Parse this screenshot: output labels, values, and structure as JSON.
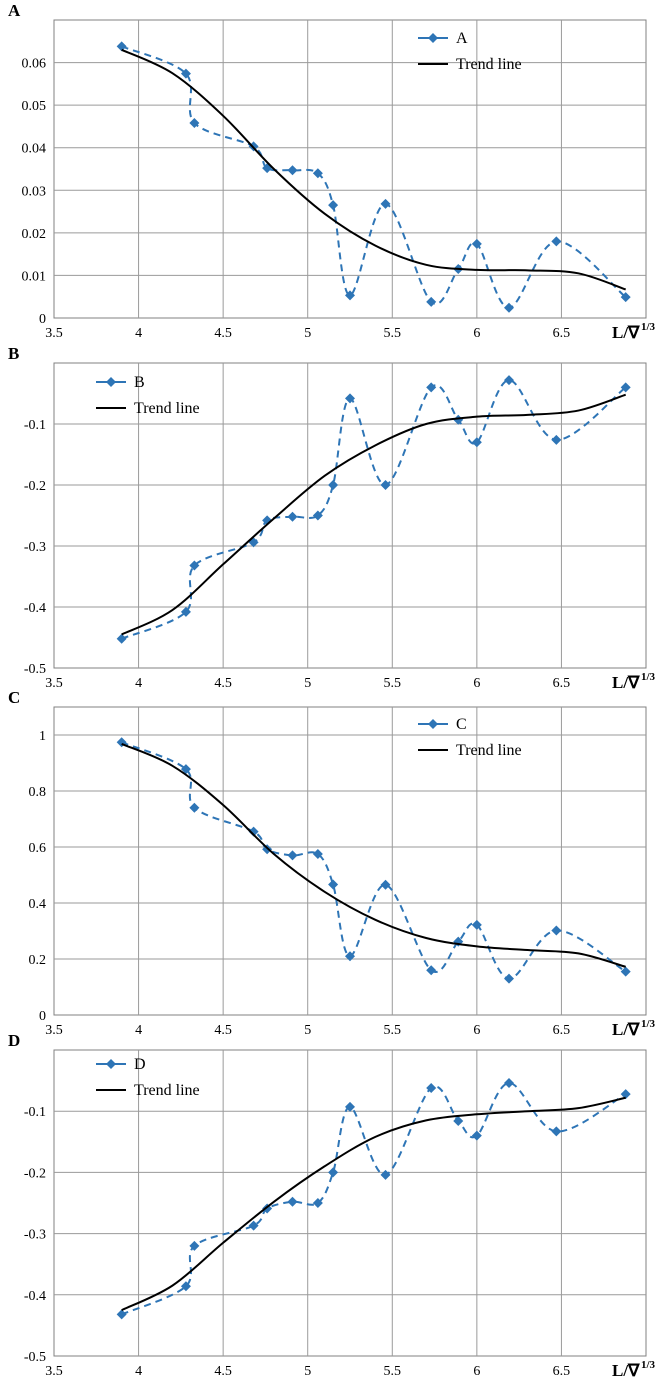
{
  "figure": {
    "colors": {
      "data_series": "#2e75b6",
      "trend": "#000000",
      "grid": "#9a9a9a",
      "frame": "#808080"
    }
  },
  "chart_data": [
    {
      "type": "line",
      "panel": "A",
      "x_label_main": "L/∇",
      "x_label_sup": "1/3",
      "xlim": [
        3.5,
        7.0
      ],
      "ylim": [
        0,
        0.07
      ],
      "x_ticks": [
        "3.5",
        "4",
        "4.5",
        "5",
        "5.5",
        "6",
        "6.5"
      ],
      "y_ticks": [
        "0",
        "0.01",
        "0.02",
        "0.03",
        "0.04",
        "0.05",
        "0.06"
      ],
      "grid": "major both axes",
      "legend_position": "top-right",
      "series": [
        {
          "name": "A",
          "style": "dashed-marker",
          "x": [
            3.9,
            4.28,
            4.33,
            4.68,
            4.76,
            4.91,
            5.06,
            5.15,
            5.25,
            5.46,
            5.73,
            5.89,
            6.0,
            6.19,
            6.47,
            6.88
          ],
          "y": [
            0.0638,
            0.0574,
            0.0458,
            0.0403,
            0.0352,
            0.0347,
            0.034,
            0.0265,
            0.0053,
            0.0268,
            0.0038,
            0.0115,
            0.0174,
            0.0024,
            0.018,
            0.0049
          ]
        },
        {
          "name": "Trend line",
          "style": "solid",
          "x": [
            3.9,
            4.2,
            4.5,
            4.8,
            5.1,
            5.4,
            5.7,
            6.0,
            6.3,
            6.6,
            6.88
          ],
          "y": [
            0.063,
            0.0575,
            0.0475,
            0.035,
            0.0245,
            0.017,
            0.0125,
            0.0113,
            0.0112,
            0.0105,
            0.0067
          ]
        }
      ]
    },
    {
      "type": "line",
      "panel": "B",
      "x_label_main": "L/∇",
      "x_label_sup": "1/3",
      "xlim": [
        3.5,
        7.0
      ],
      "ylim": [
        -0.5,
        -0.0
      ],
      "x_ticks": [
        "3.5",
        "4",
        "4.5",
        "5",
        "5.5",
        "6",
        "6.5"
      ],
      "y_ticks": [
        "-0.5",
        "-0.4",
        "-0.3",
        "-0.2",
        "-0.1"
      ],
      "grid": "major both axes",
      "legend_position": "top-left",
      "series": [
        {
          "name": "B",
          "style": "dashed-marker",
          "x": [
            3.9,
            4.28,
            4.33,
            4.68,
            4.76,
            4.91,
            5.06,
            5.15,
            5.25,
            5.46,
            5.73,
            5.89,
            6.0,
            6.19,
            6.47,
            6.88
          ],
          "y": [
            -0.452,
            -0.408,
            -0.332,
            -0.294,
            -0.258,
            -0.252,
            -0.25,
            -0.2,
            -0.058,
            -0.2,
            -0.04,
            -0.093,
            -0.13,
            -0.028,
            -0.126,
            -0.04
          ]
        },
        {
          "name": "Trend line",
          "style": "solid",
          "x": [
            3.9,
            4.2,
            4.5,
            4.8,
            5.1,
            5.4,
            5.7,
            6.0,
            6.3,
            6.6,
            6.88
          ],
          "y": [
            -0.445,
            -0.405,
            -0.33,
            -0.255,
            -0.185,
            -0.135,
            -0.1,
            -0.088,
            -0.085,
            -0.078,
            -0.052
          ]
        }
      ]
    },
    {
      "type": "line",
      "panel": "C",
      "x_label_main": "L/∇",
      "x_label_sup": "1/3",
      "xlim": [
        3.5,
        7.0
      ],
      "ylim": [
        0,
        1.1
      ],
      "x_ticks": [
        "3.5",
        "4",
        "4.5",
        "5",
        "5.5",
        "6",
        "6.5"
      ],
      "y_ticks": [
        "0",
        "0.2",
        "0.4",
        "0.6",
        "0.8",
        "1"
      ],
      "grid": "major both axes",
      "legend_position": "top-right",
      "series": [
        {
          "name": "C",
          "style": "dashed-marker",
          "x": [
            3.9,
            4.28,
            4.33,
            4.68,
            4.76,
            4.91,
            5.06,
            5.15,
            5.25,
            5.46,
            5.73,
            5.89,
            6.0,
            6.19,
            6.47,
            6.88
          ],
          "y": [
            0.974,
            0.878,
            0.74,
            0.655,
            0.592,
            0.57,
            0.575,
            0.466,
            0.21,
            0.465,
            0.16,
            0.262,
            0.322,
            0.13,
            0.302,
            0.155
          ]
        },
        {
          "name": "Trend line",
          "style": "solid",
          "x": [
            3.9,
            4.2,
            4.5,
            4.8,
            5.1,
            5.4,
            5.7,
            6.0,
            6.3,
            6.6,
            6.88
          ],
          "y": [
            0.968,
            0.89,
            0.75,
            0.575,
            0.44,
            0.34,
            0.275,
            0.245,
            0.232,
            0.22,
            0.172
          ]
        }
      ]
    },
    {
      "type": "line",
      "panel": "D",
      "x_label_main": "L/∇",
      "x_label_sup": "1/3",
      "xlim": [
        3.5,
        7.0
      ],
      "ylim": [
        -0.5,
        -0.0
      ],
      "x_ticks": [
        "3.5",
        "4",
        "4.5",
        "5",
        "5.5",
        "6",
        "6.5"
      ],
      "y_ticks": [
        "-0.5",
        "-0.4",
        "-0.3",
        "-0.2",
        "-0.1"
      ],
      "grid": "major both axes",
      "legend_position": "top-left",
      "series": [
        {
          "name": "D",
          "style": "dashed-marker",
          "x": [
            3.9,
            4.28,
            4.33,
            4.68,
            4.76,
            4.91,
            5.06,
            5.15,
            5.25,
            5.46,
            5.73,
            5.89,
            6.0,
            6.19,
            6.47,
            6.88
          ],
          "y": [
            -0.432,
            -0.386,
            -0.32,
            -0.287,
            -0.259,
            -0.248,
            -0.25,
            -0.2,
            -0.093,
            -0.204,
            -0.062,
            -0.116,
            -0.14,
            -0.054,
            -0.133,
            -0.072
          ]
        },
        {
          "name": "Trend line",
          "style": "solid",
          "x": [
            3.9,
            4.2,
            4.5,
            4.8,
            5.1,
            5.4,
            5.7,
            6.0,
            6.3,
            6.6,
            6.88
          ],
          "y": [
            -0.425,
            -0.385,
            -0.315,
            -0.248,
            -0.19,
            -0.142,
            -0.115,
            -0.105,
            -0.1,
            -0.095,
            -0.078
          ]
        }
      ]
    }
  ]
}
